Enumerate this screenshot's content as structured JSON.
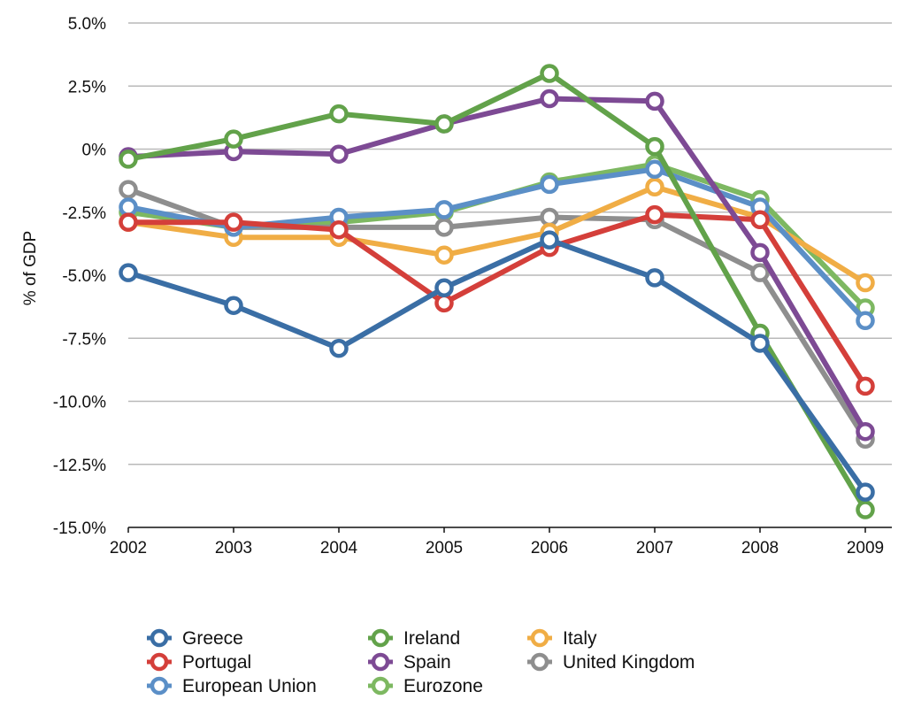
{
  "chart_data": {
    "type": "line",
    "title": "",
    "xlabel": "",
    "ylabel": "% of GDP",
    "x": [
      "2002",
      "2003",
      "2004",
      "2005",
      "2006",
      "2007",
      "2008",
      "2009"
    ],
    "ylim": [
      -15.0,
      5.0
    ],
    "yticks": [
      5.0,
      2.5,
      0,
      -2.5,
      -5.0,
      -7.5,
      -10.0,
      -12.5,
      -15.0
    ],
    "ytick_labels": [
      "5.0%",
      "2.5%",
      "0%",
      "-2.5%",
      "-5.0%",
      "-7.5%",
      "-10.0%",
      "-12.5%",
      "-15.0%"
    ],
    "grid": true,
    "legend_position": "bottom",
    "series": [
      {
        "name": "Greece",
        "color": "#3a6ea5",
        "values": [
          -4.9,
          -6.2,
          -7.9,
          -5.5,
          -3.6,
          -5.1,
          -7.7,
          -13.6
        ]
      },
      {
        "name": "Portugal",
        "color": "#d43f3a",
        "values": [
          -2.9,
          -2.9,
          -3.2,
          -6.1,
          -3.9,
          -2.6,
          -2.8,
          -9.4
        ]
      },
      {
        "name": "European Union",
        "color": "#5b8fc7",
        "values": [
          -2.3,
          -3.1,
          -2.7,
          -2.4,
          -1.4,
          -0.8,
          -2.3,
          -6.8
        ]
      },
      {
        "name": "Ireland",
        "color": "#62a24a",
        "values": [
          -0.4,
          0.4,
          1.4,
          1.0,
          3.0,
          0.1,
          -7.3,
          -14.3
        ]
      },
      {
        "name": "Spain",
        "color": "#7d4a94",
        "values": [
          -0.3,
          -0.1,
          -0.2,
          1.0,
          2.0,
          1.9,
          -4.1,
          -11.2
        ]
      },
      {
        "name": "Eurozone",
        "color": "#7db861",
        "values": [
          -2.5,
          -3.1,
          -2.9,
          -2.5,
          -1.3,
          -0.6,
          -2.0,
          -6.3
        ]
      },
      {
        "name": "Italy",
        "color": "#f0ad45",
        "values": [
          -2.9,
          -3.5,
          -3.5,
          -4.2,
          -3.3,
          -1.5,
          -2.7,
          -5.3
        ]
      },
      {
        "name": "United Kingdom",
        "color": "#8e8e8e",
        "values": [
          -1.6,
          -3.1,
          -3.1,
          -3.1,
          -2.7,
          -2.8,
          -4.9,
          -11.5
        ]
      }
    ],
    "draw_order": [
      "Eurozone",
      "United Kingdom",
      "Italy",
      "European Union",
      "Portugal",
      "Spain",
      "Ireland",
      "Greece"
    ],
    "legend_columns": [
      [
        "Greece",
        "Portugal",
        "European Union"
      ],
      [
        "Ireland",
        "Spain",
        "Eurozone"
      ],
      [
        "Italy",
        "United Kingdom"
      ]
    ]
  }
}
